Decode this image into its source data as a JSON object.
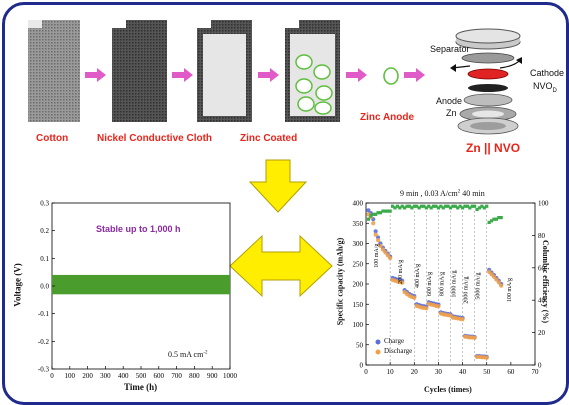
{
  "process": {
    "steps": [
      "Cotton",
      "Nickel Conductive Cloth",
      "Zinc Coated",
      "Zinc Anode"
    ],
    "cell_title": "Zn || NVO",
    "parts": {
      "separator": "Separator",
      "cathode": "Cathode",
      "cathode_material": "NVO",
      "cathode_subscript": "D",
      "anode": "Anode",
      "anode_material": "Zn"
    }
  },
  "voltage_plot": {
    "annotation": "Stable up to 1,000 h",
    "current_label": "0.5 mA cm",
    "current_sup": "-2",
    "xlabel": "Time (h)",
    "ylabel": "Voltage (V)"
  },
  "capacity_plot": {
    "title": "9 min , 0.03 A/cm",
    "title_sup": "2",
    "title_tail": " 40 min",
    "xlabel": "Cycles (times)",
    "ylabel_left": "Specific capacity (mAh/g)",
    "ylabel_right": "Columbic efficiency (%)",
    "legend": [
      "Charge",
      "Discharge"
    ],
    "rate_labels": [
      "100 mA/g",
      "200 mA/g",
      "400 mA/g",
      "600 mA/g",
      "800 mA/g",
      "1000 mA/g",
      "2000 mA/g",
      "5000 mA/g",
      "100 mA/g"
    ]
  },
  "chart_data": [
    {
      "type": "area",
      "xlabel": "Time (h)",
      "ylabel": "Voltage (V)",
      "xlim": [
        0,
        1000
      ],
      "ylim": [
        -0.3,
        0.3
      ],
      "x_ticks": [
        0,
        100,
        200,
        300,
        400,
        500,
        600,
        700,
        800,
        900,
        1000
      ],
      "y_ticks": [
        -0.3,
        -0.2,
        -0.1,
        0.0,
        0.1,
        0.2,
        0.3
      ],
      "band": {
        "x": [
          0,
          1000
        ],
        "y_low": -0.03,
        "y_high": 0.04
      },
      "color": "#4a9c2d"
    },
    {
      "type": "scatter",
      "xlabel": "Cycles (times)",
      "ylabel": "Specific capacity (mAh/g)",
      "y2label": "Columbic efficiency (%)",
      "xlim": [
        0,
        70
      ],
      "ylim": [
        0,
        400
      ],
      "y2lim": [
        0,
        100
      ],
      "x_ticks": [
        0,
        10,
        20,
        30,
        40,
        50,
        60,
        70
      ],
      "y_ticks": [
        0,
        50,
        100,
        150,
        200,
        250,
        300,
        350,
        400
      ],
      "y2_ticks": [
        0,
        20,
        40,
        60,
        80,
        100
      ],
      "series": [
        {
          "name": "Charge",
          "color": "#5b6fd6",
          "x": [
            1,
            2,
            3,
            4,
            5,
            6,
            7,
            8,
            9,
            10,
            11,
            12,
            13,
            14,
            15,
            16,
            17,
            18,
            19,
            20,
            21,
            22,
            23,
            24,
            25,
            26,
            27,
            28,
            29,
            30,
            31,
            32,
            33,
            34,
            35,
            36,
            37,
            38,
            39,
            40,
            41,
            42,
            43,
            44,
            45,
            46,
            47,
            48,
            49,
            50,
            51,
            52,
            53,
            54,
            55,
            56
          ],
          "y": [
            382,
            375,
            360,
            330,
            315,
            300,
            290,
            282,
            275,
            268,
            215,
            213,
            211,
            210,
            208,
            185,
            180,
            175,
            172,
            170,
            150,
            148,
            146,
            145,
            144,
            155,
            153,
            152,
            150,
            149,
            130,
            128,
            127,
            126,
            125,
            120,
            119,
            118,
            117,
            116,
            72,
            71,
            70,
            70,
            69,
            22,
            22,
            21,
            21,
            20,
            235,
            228,
            222,
            215,
            208,
            200
          ]
        },
        {
          "name": "Discharge",
          "color": "#f0a04b",
          "x": [
            1,
            2,
            3,
            4,
            5,
            6,
            7,
            8,
            9,
            10,
            11,
            12,
            13,
            14,
            15,
            16,
            17,
            18,
            19,
            20,
            21,
            22,
            23,
            24,
            25,
            26,
            27,
            28,
            29,
            30,
            31,
            32,
            33,
            34,
            35,
            36,
            37,
            38,
            39,
            40,
            41,
            42,
            43,
            44,
            45,
            46,
            47,
            48,
            49,
            50,
            51,
            52,
            53,
            54,
            55,
            56
          ],
          "y": [
            372,
            365,
            350,
            322,
            308,
            294,
            285,
            278,
            271,
            264,
            210,
            208,
            206,
            205,
            203,
            180,
            175,
            171,
            168,
            166,
            146,
            144,
            142,
            141,
            140,
            151,
            149,
            148,
            146,
            145,
            127,
            125,
            124,
            123,
            122,
            117,
            116,
            115,
            114,
            113,
            70,
            69,
            68,
            68,
            67,
            20,
            20,
            19,
            19,
            18,
            230,
            224,
            218,
            211,
            204,
            196
          ]
        },
        {
          "name": "Efficiency",
          "color": "#3aaa4a",
          "axis": "right",
          "x": [
            1,
            2,
            3,
            4,
            5,
            6,
            7,
            8,
            9,
            10,
            11,
            12,
            13,
            14,
            15,
            16,
            17,
            18,
            19,
            20,
            21,
            22,
            23,
            24,
            25,
            26,
            27,
            28,
            29,
            30,
            31,
            32,
            33,
            34,
            35,
            36,
            37,
            38,
            39,
            40,
            41,
            42,
            43,
            44,
            45,
            46,
            47,
            48,
            49,
            50,
            51,
            52,
            53,
            54,
            55,
            56
          ],
          "y": [
            90,
            92,
            93,
            93,
            94,
            94,
            95,
            95,
            95,
            95,
            98,
            97,
            98,
            97,
            98,
            97,
            98,
            98,
            97,
            98,
            98,
            97,
            98,
            98,
            97,
            98,
            97,
            98,
            98,
            97,
            98,
            97,
            98,
            98,
            97,
            98,
            98,
            97,
            98,
            97,
            98,
            98,
            97,
            98,
            98,
            96,
            97,
            98,
            97,
            98,
            88,
            89,
            90,
            90,
            91,
            91
          ]
        }
      ],
      "legend_placement": "bottom-left"
    }
  ],
  "colors": {
    "frame": "#1f2a8c",
    "step_label": "#e8251b",
    "arrow_pink": "#e05ac8",
    "arrow_yellow": "#ffee00",
    "band_green": "#4a9c2d",
    "annotation": "#8a2aa0"
  }
}
